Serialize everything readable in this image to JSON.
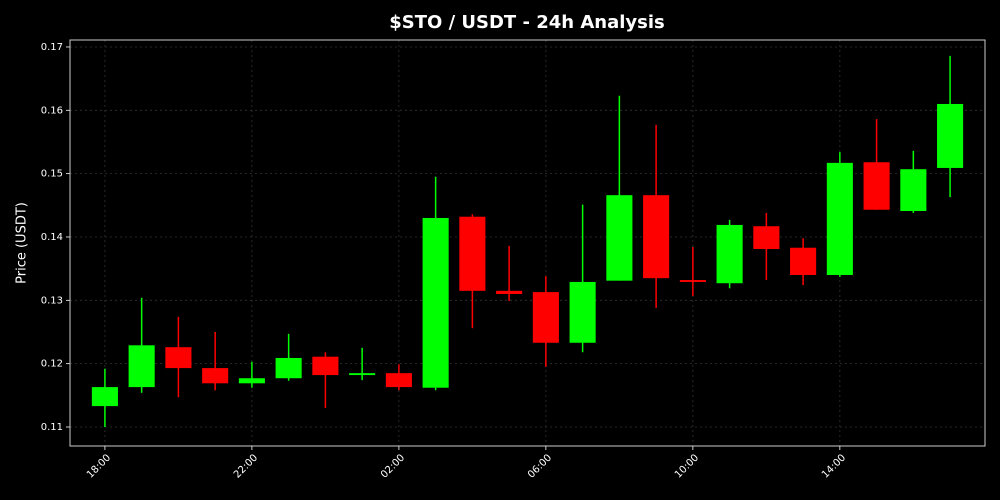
{
  "chart_data": {
    "type": "candlestick",
    "title": "$STO / USDT - 24h Analysis",
    "y_label": "Price (USDT)",
    "categories": [
      "18:00",
      null,
      null,
      null,
      "22:00",
      null,
      null,
      null,
      "02:00",
      null,
      null,
      null,
      "06:00",
      null,
      null,
      null,
      "10:00",
      null,
      null,
      null,
      "14:00",
      null,
      null,
      null
    ],
    "open": [
      0.1133,
      0.1163,
      0.1226,
      0.1193,
      0.1169,
      0.1177,
      0.1211,
      0.1182,
      0.1185,
      0.1162,
      0.1432,
      0.1315,
      0.1313,
      0.1233,
      0.1331,
      0.1466,
      0.1332,
      0.1327,
      0.1417,
      0.1383,
      0.134,
      0.1518,
      0.1441,
      0.1509
    ],
    "high": [
      0.1192,
      0.1304,
      0.1274,
      0.125,
      0.1203,
      0.1247,
      0.1218,
      0.1225,
      0.1199,
      0.1495,
      0.1436,
      0.1386,
      0.1338,
      0.1451,
      0.1623,
      0.1577,
      0.1384,
      0.1427,
      0.1438,
      0.1398,
      0.1534,
      0.1586,
      0.1536,
      0.1686
    ],
    "low": [
      0.11,
      0.1154,
      0.1147,
      0.1158,
      0.1162,
      0.1173,
      0.113,
      0.1174,
      0.1158,
      0.1158,
      0.1256,
      0.1299,
      0.1195,
      0.1218,
      0.1331,
      0.1288,
      0.1307,
      0.1319,
      0.1332,
      0.1324,
      0.1337,
      0.1443,
      0.1438,
      0.1463
    ],
    "close": [
      0.1163,
      0.1229,
      0.1193,
      0.1169,
      0.1177,
      0.1209,
      0.1182,
      0.1185,
      0.1163,
      0.143,
      0.1315,
      0.131,
      0.1233,
      0.1329,
      0.1466,
      0.1335,
      0.1329,
      0.1419,
      0.1381,
      0.134,
      0.1517,
      0.1443,
      0.1507,
      0.161
    ],
    "up_color": "#00ff00",
    "down_color": "#ff0000",
    "ylim": [
      0.107,
      0.1711
    ],
    "yticks": [
      0.11,
      0.12,
      0.13,
      0.14,
      0.15,
      0.16,
      0.17
    ],
    "grid": true
  }
}
